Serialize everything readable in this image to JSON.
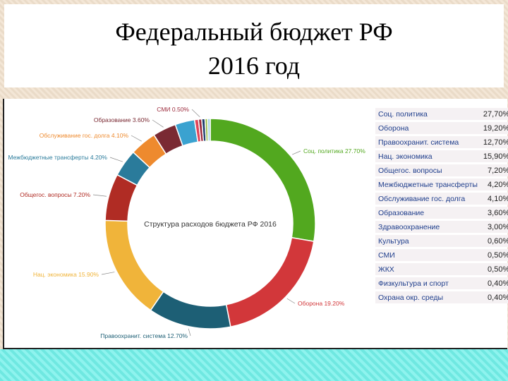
{
  "title": {
    "line1": "Федеральный бюджет РФ",
    "line2": "2016 год"
  },
  "chart_data": {
    "type": "pie",
    "title": "Структура расходов бюджета РФ 2016",
    "series": [
      {
        "label": "Соц. политика 27.70%",
        "value": 27.7,
        "color": "#52a81f"
      },
      {
        "label": "Оборона 19.20%",
        "value": 19.2,
        "color": "#d2373a"
      },
      {
        "label": "Правоохранит. система 12.70%",
        "value": 12.7,
        "color": "#1d5f75"
      },
      {
        "label": "Нац. экономика 15.90%",
        "value": 15.9,
        "color": "#f0b43a"
      },
      {
        "label": "Общегос. вопросы 7.20%",
        "value": 7.2,
        "color": "#b02c24"
      },
      {
        "label": "Межбюджетные трансферты 4.20%",
        "value": 4.2,
        "color": "#2a7b9b"
      },
      {
        "label": "Обслуживание гос. долга 4.10%",
        "value": 4.1,
        "color": "#ee8a2e"
      },
      {
        "label": "Образование 3.60%",
        "value": 3.6,
        "color": "#7a2a33"
      },
      {
        "label": "",
        "value": 3.0,
        "color": "#3aa2d0"
      },
      {
        "label": "",
        "value": 0.6,
        "color": "#e0455a"
      },
      {
        "label": "СМИ 0.50%",
        "value": 0.5,
        "color": "#9b2a3b"
      },
      {
        "label": "",
        "value": 0.5,
        "color": "#1f3e6e"
      },
      {
        "label": "",
        "value": 0.4,
        "color": "#98c04a"
      },
      {
        "label": "",
        "value": 0.4,
        "color": "#9fd0e6"
      }
    ]
  },
  "table": {
    "rows": [
      {
        "name": "Соц. политика",
        "value": "27,70%"
      },
      {
        "name": "Оборона",
        "value": "19,20%"
      },
      {
        "name": "Правоохранит. система",
        "value": "12,70%"
      },
      {
        "name": "Нац. экономика",
        "value": "15,90%"
      },
      {
        "name": "Общегос. вопросы",
        "value": "7,20%"
      },
      {
        "name": "Межбюджетные трансферты",
        "value": "4,20%"
      },
      {
        "name": "Обслуживание гос. долга",
        "value": "4,10%"
      },
      {
        "name": "Образование",
        "value": "3,60%"
      },
      {
        "name": "Здравоохранение",
        "value": "3,00%"
      },
      {
        "name": "Культура",
        "value": "0,60%"
      },
      {
        "name": "СМИ",
        "value": "0,50%"
      },
      {
        "name": "ЖКХ",
        "value": "0,50%"
      },
      {
        "name": "Физкультура и спорт",
        "value": "0,40%"
      },
      {
        "name": "Охрана окр. среды",
        "value": "0,40%"
      }
    ]
  }
}
